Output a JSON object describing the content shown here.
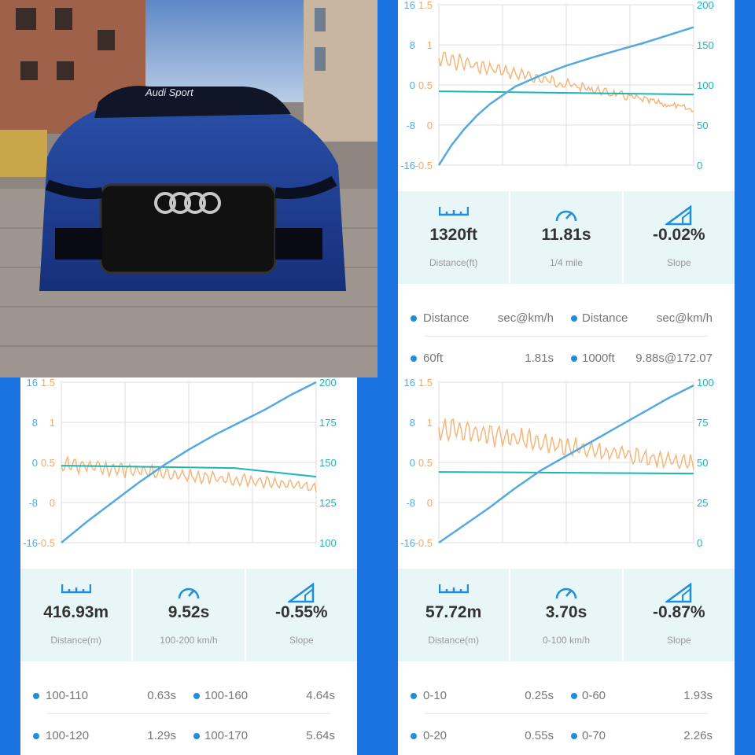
{
  "colors": {
    "background": "#1a73e0",
    "blue": "#56a8e0",
    "orange": "#f5b67a",
    "teal": "#1cb5b5",
    "stat_bg": "#e8f6f8"
  },
  "photo": {
    "banner_text": "Audi Sport"
  },
  "icons": {
    "distance": "ruler-icon",
    "time": "speedometer-icon",
    "slope": "slope-icon"
  },
  "panels": {
    "quarter_mile": {
      "stats": {
        "distance": "1320ft",
        "distance_label": "Distance(ft)",
        "time": "11.81s",
        "time_label": "1/4 mile",
        "slope": "-0.02%",
        "slope_label": "Slope"
      },
      "header": {
        "col1": "Distance",
        "col2": "sec@km/h",
        "col3": "Distance",
        "col4": "sec@km/h"
      },
      "rows": [
        {
          "a": "60ft",
          "av": "1.81s",
          "b": "1000ft",
          "bv": "9.88s@172.07"
        }
      ]
    },
    "speed_100_200": {
      "stats": {
        "distance": "416.93m",
        "distance_label": "Distance(m)",
        "time": "9.52s",
        "time_label": "100-200 km/h",
        "slope": "-0.55%",
        "slope_label": "Slope"
      },
      "rows": [
        {
          "a": "100-110",
          "av": "0.63s",
          "b": "100-160",
          "bv": "4.64s"
        },
        {
          "a": "100-120",
          "av": "1.29s",
          "b": "100-170",
          "bv": "5.64s"
        }
      ]
    },
    "speed_0_100": {
      "stats": {
        "distance": "57.72m",
        "distance_label": "Distance(m)",
        "time": "3.70s",
        "time_label": "0-100 km/h",
        "slope": "-0.87%",
        "slope_label": "Slope"
      },
      "rows": [
        {
          "a": "0-10",
          "av": "0.25s",
          "b": "0-60",
          "bv": "1.93s"
        },
        {
          "a": "0-20",
          "av": "0.55s",
          "b": "0-70",
          "bv": "2.26s"
        }
      ]
    }
  },
  "chart_data": [
    {
      "type": "line",
      "axes": {
        "left_outer": [
          "16",
          "8",
          "0",
          "-8",
          "-16"
        ],
        "left_inner": [
          "1.5",
          "1",
          "0.5",
          "0",
          "-0.5"
        ],
        "right": [
          "200",
          "150",
          "100",
          "50",
          "0"
        ]
      },
      "right_range": [
        0,
        200
      ],
      "series": [
        {
          "color": "#56a8e0",
          "axis": "right",
          "x": [
            0,
            0.05,
            0.1,
            0.15,
            0.2,
            0.3,
            0.4,
            0.5,
            0.6,
            0.7,
            0.8,
            0.9,
            1.0
          ],
          "y": [
            0,
            25,
            45,
            62,
            76,
            98,
            112,
            124,
            134,
            143,
            152,
            162,
            172
          ]
        }
      ]
    },
    {
      "type": "line",
      "axes": {
        "left_outer": [
          "16",
          "8",
          "0",
          "-8",
          "-16"
        ],
        "left_inner": [
          "1.5",
          "1",
          "0.5",
          "0",
          "-0.5"
        ],
        "right": [
          "200",
          "175",
          "150",
          "125",
          "100"
        ]
      },
      "right_range": [
        100,
        200
      ],
      "series": [
        {
          "color": "#56a8e0",
          "axis": "right",
          "x": [
            0,
            0.1,
            0.2,
            0.3,
            0.4,
            0.5,
            0.6,
            0.7,
            0.8,
            0.9,
            1.0
          ],
          "y": [
            100,
            113,
            125,
            137,
            148,
            158,
            167,
            175,
            183,
            192,
            200
          ]
        }
      ]
    },
    {
      "type": "line",
      "axes": {
        "left_outer": [
          "16",
          "8",
          "0",
          "-8",
          "-16"
        ],
        "left_inner": [
          "1.5",
          "1",
          "0.5",
          "0",
          "-0.5"
        ],
        "right": [
          "100",
          "75",
          "50",
          "25",
          "0"
        ]
      },
      "right_range": [
        0,
        100
      ],
      "series": [
        {
          "color": "#56a8e0",
          "axis": "right",
          "x": [
            0,
            0.1,
            0.2,
            0.3,
            0.4,
            0.5,
            0.6,
            0.7,
            0.8,
            0.9,
            1.0
          ],
          "y": [
            0,
            11,
            22,
            34,
            45,
            54,
            63,
            72,
            81,
            90,
            98
          ]
        }
      ]
    }
  ]
}
